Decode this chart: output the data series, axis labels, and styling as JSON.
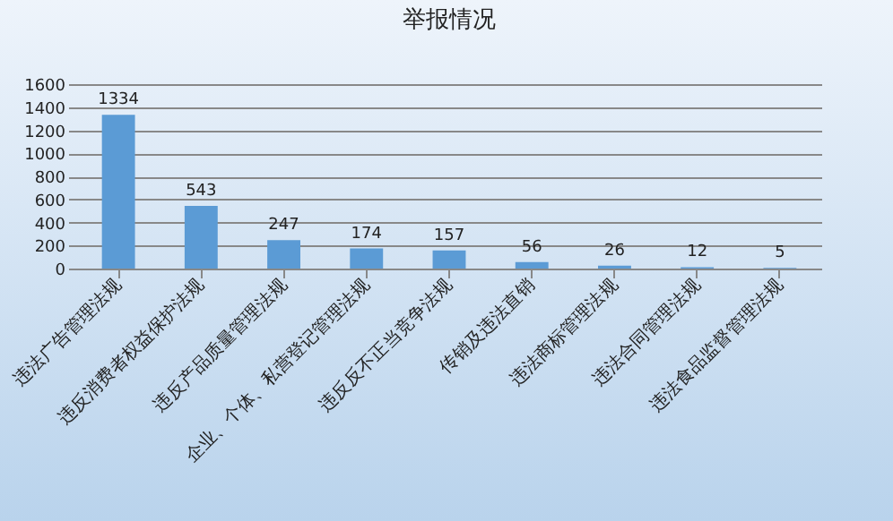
{
  "chart_data": {
    "type": "bar",
    "title": "举报情况",
    "categories": [
      "违法广告管理法规",
      "违反消费者权益保护法规",
      "违反产品质量管理法规",
      "企业、个体、私营登记管理法规",
      "违反反不正当竞争法规",
      "传销及违法直销",
      "违法商标管理法规",
      "违法合同管理法规",
      "违法食品监督管理法规"
    ],
    "values": [
      1334,
      543,
      247,
      174,
      157,
      56,
      26,
      12,
      5
    ],
    "color": "#5b9bd5",
    "ylim": [
      0,
      1600
    ],
    "yticks": [
      0,
      200,
      400,
      600,
      800,
      1000,
      1200,
      1400,
      1600
    ],
    "grid": "y",
    "data_labels": true
  }
}
